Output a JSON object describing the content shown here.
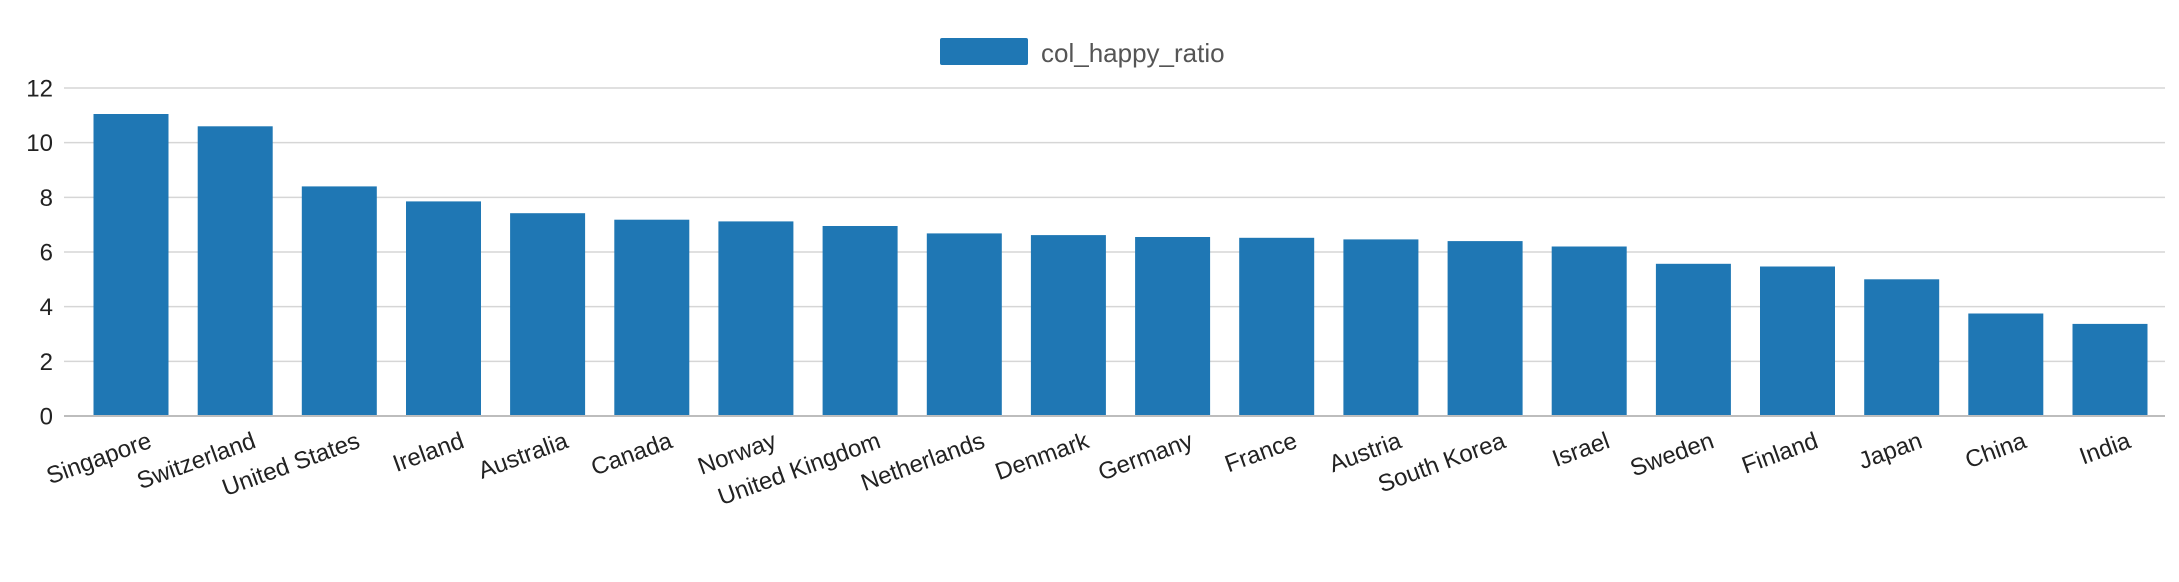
{
  "chart_data": {
    "type": "bar",
    "title": "",
    "xlabel": "",
    "ylabel": "",
    "ylim": [
      0,
      12
    ],
    "yticks": [
      0,
      2,
      4,
      6,
      8,
      10,
      12
    ],
    "grid": true,
    "legend_position": "top-center",
    "categories": [
      "Singapore",
      "Switzerland",
      "United States",
      "Ireland",
      "Australia",
      "Canada",
      "Norway",
      "United Kingdom",
      "Netherlands",
      "Denmark",
      "Germany",
      "France",
      "Austria",
      "South Korea",
      "Israel",
      "Sweden",
      "Finland",
      "Japan",
      "China",
      "India"
    ],
    "series": [
      {
        "name": "col_happy_ratio",
        "color": "#1f77b4",
        "values": [
          11.05,
          10.6,
          8.4,
          7.85,
          7.42,
          7.18,
          7.12,
          6.95,
          6.68,
          6.62,
          6.55,
          6.52,
          6.46,
          6.4,
          6.2,
          5.57,
          5.47,
          5.0,
          3.75,
          3.37
        ]
      }
    ]
  }
}
